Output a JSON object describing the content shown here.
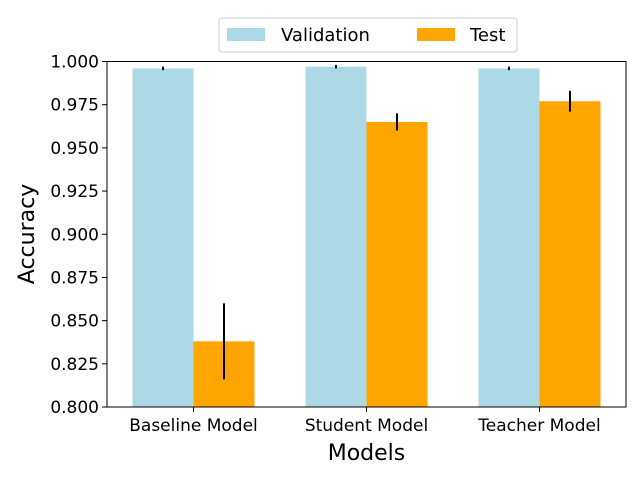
{
  "chart_data": {
    "type": "bar",
    "title": "",
    "xlabel": "Models",
    "ylabel": "Accuracy",
    "categories": [
      "Baseline Model",
      "Student Model",
      "Teacher Model"
    ],
    "ylim": [
      0.8,
      1.0
    ],
    "yticks": [
      "0.800",
      "0.825",
      "0.850",
      "0.875",
      "0.900",
      "0.925",
      "0.950",
      "0.975",
      "1.000"
    ],
    "grid": false,
    "legend_position": "top-center",
    "series": [
      {
        "name": "Validation",
        "color": "#add8e6",
        "values": [
          0.996,
          0.997,
          0.996
        ],
        "errors": [
          0.001,
          0.001,
          0.001
        ]
      },
      {
        "name": "Test",
        "color": "#ffa500",
        "values": [
          0.838,
          0.965,
          0.977
        ],
        "errors": [
          0.022,
          0.005,
          0.006
        ]
      }
    ]
  }
}
